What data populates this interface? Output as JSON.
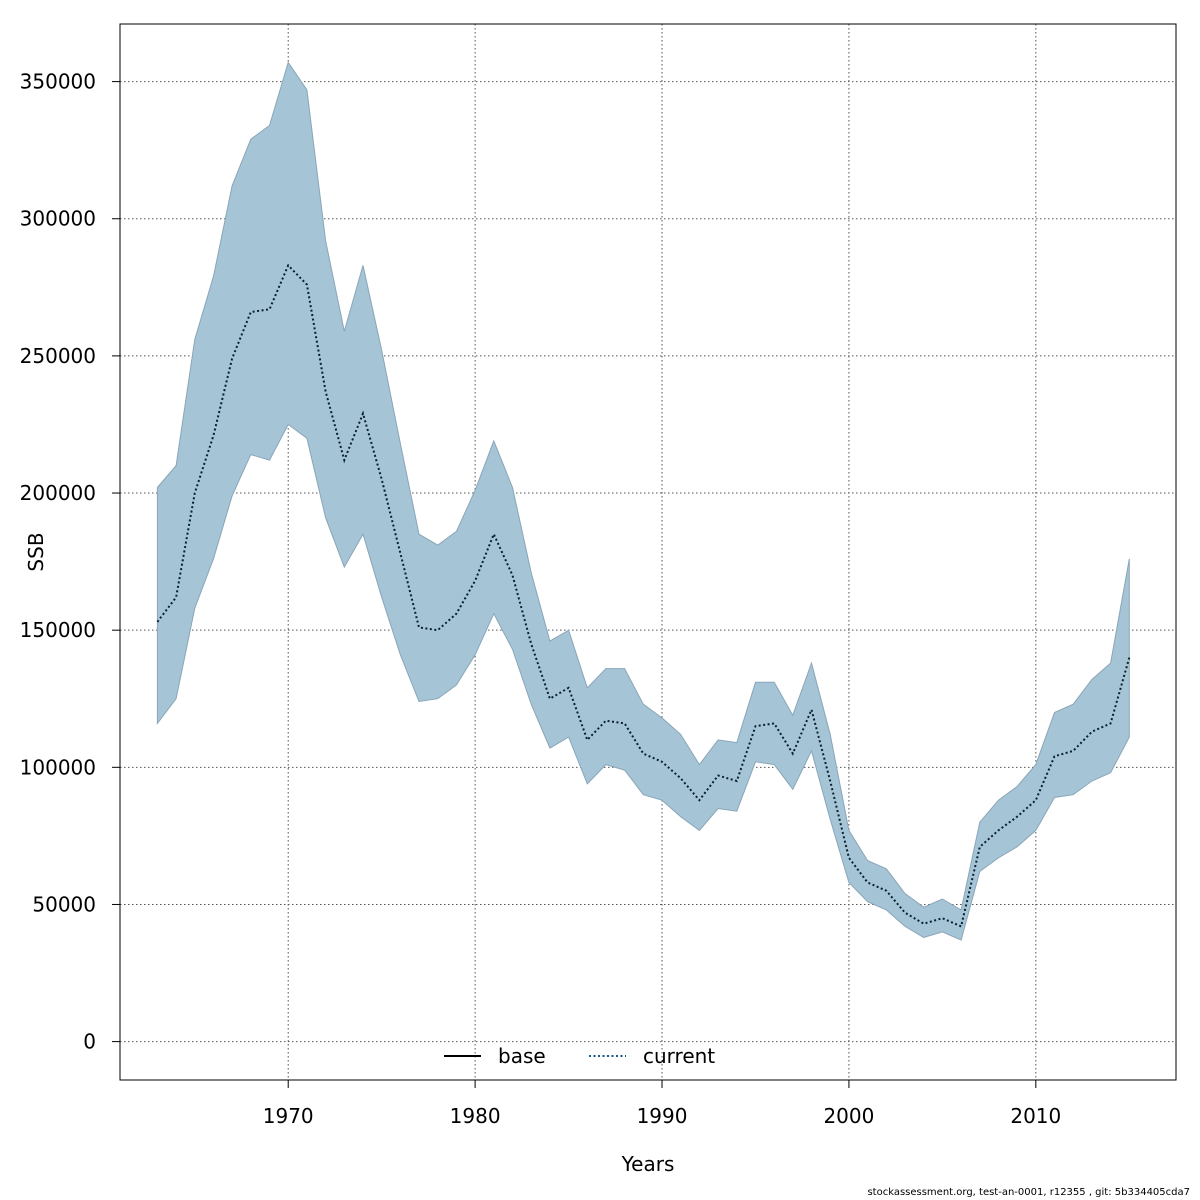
{
  "chart_data": {
    "type": "line",
    "title": "",
    "xlabel": "Years",
    "ylabel": "SSB",
    "xlim": [
      1961,
      2017.5
    ],
    "ylim": [
      -14000,
      371000
    ],
    "x_ticks": [
      1970,
      1980,
      1990,
      2000,
      2010
    ],
    "y_ticks": [
      0,
      50000,
      100000,
      150000,
      200000,
      250000,
      300000,
      350000
    ],
    "grid": true,
    "legend_position": "bottom",
    "legend": [
      {
        "name": "base",
        "style": "solid",
        "color": "#000000"
      },
      {
        "name": "current",
        "style": "dotted",
        "color": "#0b5d8a"
      }
    ],
    "colors": {
      "band_fill": "#a5c4d5",
      "band_stroke": "#8aa6b8",
      "line": "#0a2030",
      "grid": "#555555"
    },
    "x": [
      1963,
      1964,
      1965,
      1966,
      1967,
      1968,
      1969,
      1970,
      1971,
      1972,
      1973,
      1974,
      1975,
      1976,
      1977,
      1978,
      1979,
      1980,
      1981,
      1982,
      1983,
      1984,
      1985,
      1986,
      1987,
      1988,
      1989,
      1990,
      1991,
      1992,
      1993,
      1994,
      1995,
      1996,
      1997,
      1998,
      1999,
      2000,
      2001,
      2002,
      2003,
      2004,
      2005,
      2006,
      2007,
      2008,
      2009,
      2010,
      2011,
      2012,
      2013,
      2014,
      2015
    ],
    "series": [
      {
        "name": "current",
        "role": "estimate",
        "values": [
          153000,
          162000,
          200000,
          221000,
          249000,
          266000,
          267000,
          283000,
          276000,
          237000,
          212000,
          229000,
          205000,
          178000,
          151000,
          150000,
          156000,
          168000,
          185000,
          170000,
          145000,
          125000,
          129000,
          110000,
          117000,
          116000,
          105000,
          102000,
          96000,
          88000,
          97000,
          95000,
          115000,
          116000,
          105000,
          121000,
          95000,
          67000,
          58000,
          55000,
          47000,
          43000,
          45000,
          42000,
          71000,
          77000,
          82000,
          88000,
          104000,
          106000,
          113000,
          116000,
          140000
        ]
      },
      {
        "name": "upper",
        "role": "confidence_upper",
        "values": [
          202000,
          210000,
          256000,
          279000,
          312000,
          329000,
          334000,
          357000,
          347000,
          292000,
          259000,
          283000,
          252000,
          218000,
          185000,
          181000,
          186000,
          201000,
          219000,
          202000,
          171000,
          146000,
          150000,
          129000,
          136000,
          136000,
          123000,
          118000,
          112000,
          101000,
          110000,
          109000,
          131000,
          131000,
          119000,
          138000,
          112000,
          77000,
          66000,
          63000,
          54000,
          49000,
          52000,
          48000,
          80000,
          88000,
          93000,
          101000,
          120000,
          123000,
          132000,
          138000,
          176000
        ]
      },
      {
        "name": "lower",
        "role": "confidence_lower",
        "values": [
          116000,
          125000,
          158000,
          176000,
          199000,
          214000,
          212000,
          225000,
          220000,
          191000,
          173000,
          185000,
          162000,
          141000,
          124000,
          125000,
          130000,
          141000,
          156000,
          143000,
          123000,
          107000,
          111000,
          94000,
          101000,
          99000,
          90000,
          88000,
          82000,
          77000,
          85000,
          84000,
          102000,
          101000,
          92000,
          106000,
          81000,
          58000,
          51000,
          48000,
          42000,
          38000,
          40000,
          37000,
          62000,
          67000,
          71000,
          77000,
          89000,
          90000,
          95000,
          98000,
          111000
        ]
      }
    ]
  },
  "footnote": "stockassessment.org, test-an-0001, r12355 , git: 5b334405cda7"
}
